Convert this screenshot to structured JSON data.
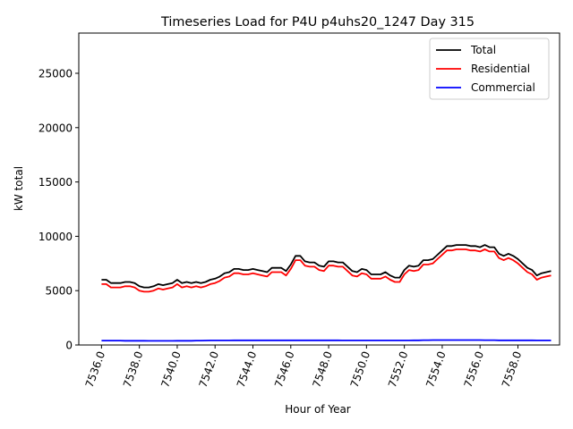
{
  "chart_data": {
    "type": "line",
    "title": "Timeseries Load for P4U p4uhs20_1247  Day 315",
    "xlabel": "Hour of Year",
    "ylabel": "kW total",
    "xlim": [
      7534.8,
      7560.2
    ],
    "ylim": [
      0,
      28700
    ],
    "xticks": [
      7536,
      7538,
      7540,
      7542,
      7544,
      7546,
      7548,
      7550,
      7552,
      7554,
      7556,
      7558
    ],
    "xtick_labels": [
      "7536.0",
      "7538.0",
      "7540.0",
      "7542.0",
      "7544.0",
      "7546.0",
      "7548.0",
      "7550.0",
      "7552.0",
      "7554.0",
      "7556.0",
      "7558.0"
    ],
    "yticks": [
      0,
      5000,
      10000,
      15000,
      20000,
      25000
    ],
    "ytick_labels": [
      "0",
      "5000",
      "10000",
      "15000",
      "20000",
      "25000"
    ],
    "legend_position": "top-right",
    "x": [
      7536.0,
      7536.25,
      7536.5,
      7536.75,
      7537.0,
      7537.25,
      7537.5,
      7537.75,
      7538.0,
      7538.25,
      7538.5,
      7538.75,
      7539.0,
      7539.25,
      7539.5,
      7539.75,
      7540.0,
      7540.25,
      7540.5,
      7540.75,
      7541.0,
      7541.25,
      7541.5,
      7541.75,
      7542.0,
      7542.25,
      7542.5,
      7542.75,
      7543.0,
      7543.25,
      7543.5,
      7543.75,
      7544.0,
      7544.25,
      7544.5,
      7544.75,
      7545.0,
      7545.25,
      7545.5,
      7545.75,
      7546.0,
      7546.25,
      7546.5,
      7546.75,
      7547.0,
      7547.25,
      7547.5,
      7547.75,
      7548.0,
      7548.25,
      7548.5,
      7548.75,
      7549.0,
      7549.25,
      7549.5,
      7549.75,
      7550.0,
      7550.25,
      7550.5,
      7550.75,
      7551.0,
      7551.25,
      7551.5,
      7551.75,
      7552.0,
      7552.25,
      7552.5,
      7552.75,
      7553.0,
      7553.25,
      7553.5,
      7553.75,
      7554.0,
      7554.25,
      7554.5,
      7554.75,
      7555.0,
      7555.25,
      7555.5,
      7555.75,
      7556.0,
      7556.25,
      7556.5,
      7556.75,
      7557.0,
      7557.25,
      7557.5,
      7557.75,
      7558.0,
      7558.25,
      7558.5,
      7558.75,
      7559.0,
      7559.25,
      7559.5,
      7559.75
    ],
    "series": [
      {
        "name": "Total",
        "color": "#000000",
        "values": [
          6000,
          6000,
          5700,
          5700,
          5700,
          5800,
          5800,
          5700,
          5400,
          5300,
          5300,
          5400,
          5600,
          5500,
          5600,
          5700,
          6000,
          5700,
          5800,
          5700,
          5800,
          5700,
          5800,
          6000,
          6100,
          6300,
          6600,
          6700,
          7000,
          7000,
          6900,
          6900,
          7000,
          6900,
          6800,
          6700,
          7100,
          7100,
          7100,
          6800,
          7400,
          8200,
          8200,
          7700,
          7600,
          7600,
          7300,
          7200,
          7700,
          7700,
          7600,
          7600,
          7200,
          6800,
          6700,
          7000,
          6900,
          6500,
          6500,
          6500,
          6700,
          6400,
          6200,
          6200,
          6900,
          7300,
          7200,
          7300,
          7800,
          7800,
          7900,
          8300,
          8700,
          9100,
          9100,
          9200,
          9200,
          9200,
          9100,
          9100,
          9000,
          9200,
          9000,
          9000,
          8400,
          8200,
          8400,
          8200,
          7900,
          7500,
          7100,
          6900,
          6400,
          6600,
          6700,
          6800
        ]
      },
      {
        "name": "Residential",
        "color": "#ff0000",
        "values": [
          5600,
          5600,
          5300,
          5300,
          5300,
          5400,
          5400,
          5300,
          5000,
          4900,
          4900,
          5000,
          5200,
          5100,
          5200,
          5300,
          5600,
          5300,
          5400,
          5300,
          5400,
          5300,
          5400,
          5600,
          5700,
          5900,
          6200,
          6300,
          6600,
          6600,
          6500,
          6500,
          6600,
          6500,
          6400,
          6300,
          6700,
          6700,
          6700,
          6400,
          7000,
          7800,
          7800,
          7300,
          7200,
          7200,
          6900,
          6800,
          7300,
          7300,
          7200,
          7200,
          6800,
          6400,
          6300,
          6600,
          6500,
          6100,
          6100,
          6100,
          6300,
          6000,
          5800,
          5800,
          6500,
          6900,
          6800,
          6900,
          7400,
          7400,
          7500,
          7900,
          8300,
          8700,
          8700,
          8800,
          8800,
          8800,
          8700,
          8700,
          8600,
          8800,
          8600,
          8600,
          8000,
          7800,
          8000,
          7800,
          7500,
          7100,
          6700,
          6500,
          6000,
          6200,
          6300,
          6400
        ]
      },
      {
        "name": "Commercial",
        "color": "#0000ff",
        "values": [
          400,
          400,
          400,
          400,
          400,
          390,
          390,
          390,
          390,
          390,
          380,
          380,
          380,
          380,
          380,
          380,
          390,
          390,
          390,
          390,
          400,
          400,
          410,
          420,
          420,
          420,
          420,
          420,
          430,
          430,
          430,
          430,
          430,
          430,
          430,
          430,
          430,
          430,
          430,
          430,
          430,
          430,
          430,
          430,
          430,
          430,
          430,
          430,
          430,
          430,
          430,
          420,
          420,
          420,
          420,
          420,
          420,
          420,
          420,
          420,
          420,
          420,
          420,
          420,
          420,
          420,
          430,
          430,
          440,
          440,
          450,
          450,
          450,
          450,
          450,
          450,
          450,
          450,
          450,
          450,
          450,
          440,
          440,
          440,
          430,
          430,
          430,
          430,
          430,
          430,
          430,
          430,
          420,
          420,
          420,
          420
        ]
      }
    ]
  }
}
